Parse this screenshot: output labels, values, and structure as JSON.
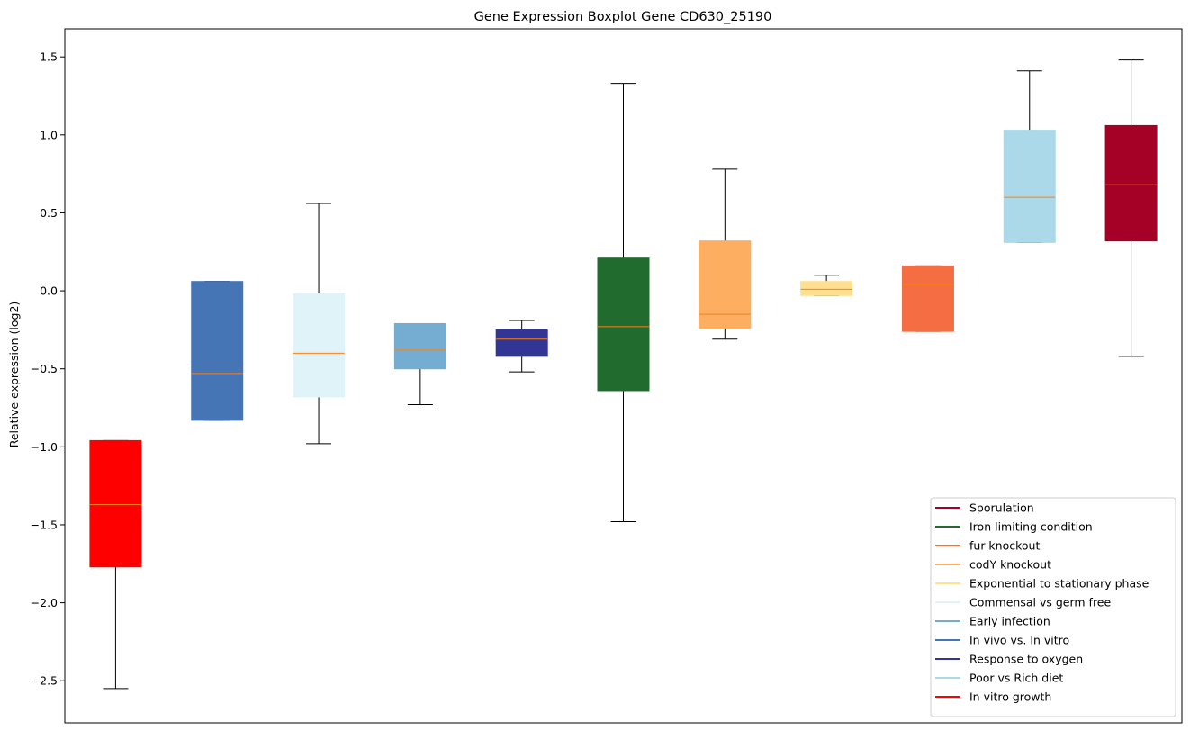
{
  "chart_data": {
    "type": "boxplot",
    "title": "Gene Expression Boxplot Gene CD630_25190",
    "xlabel": "",
    "ylabel": "Relative expression (log2)",
    "ylim": [
      -2.77,
      1.68
    ],
    "yticks": [
      1.5,
      1.0,
      0.5,
      0.0,
      -0.5,
      -1.0,
      -1.5,
      -2.0,
      -2.5
    ],
    "ytick_labels": [
      "1.5",
      "1.0",
      "0.5",
      "0.0",
      "−0.5",
      "−1.0",
      "−1.5",
      "−2.0",
      "−2.5"
    ],
    "median_color": "#ff7f0e",
    "boxes": [
      {
        "name": "In vitro growth",
        "color": "#ff0000",
        "whislo": -2.55,
        "q1": -1.77,
        "med": -1.37,
        "q3": -0.96,
        "whishi": -0.96
      },
      {
        "name": "In vivo vs. In vitro",
        "color": "#4575b4",
        "whislo": -0.83,
        "q1": -0.83,
        "med": -0.53,
        "q3": 0.06,
        "whishi": 0.06
      },
      {
        "name": "Commensal vs germ free",
        "color": "#e0f3f8",
        "whislo": -0.98,
        "q1": -0.68,
        "med": -0.4,
        "q3": -0.02,
        "whishi": 0.56
      },
      {
        "name": "Early infection",
        "color": "#74add1",
        "whislo": -0.73,
        "q1": -0.5,
        "med": -0.38,
        "q3": -0.21,
        "whishi": -0.21
      },
      {
        "name": "Response to oxygen",
        "color": "#313695",
        "whislo": -0.52,
        "q1": -0.42,
        "med": -0.31,
        "q3": -0.25,
        "whishi": -0.19
      },
      {
        "name": "Iron limiting condition",
        "color": "#226b2e",
        "whislo": -1.48,
        "q1": -0.64,
        "med": -0.23,
        "q3": 0.21,
        "whishi": 1.33
      },
      {
        "name": "codY knockout",
        "color": "#fdae61",
        "whislo": -0.31,
        "q1": -0.24,
        "med": -0.15,
        "q3": 0.32,
        "whishi": 0.78
      },
      {
        "name": "Exponential to stationary phase",
        "color": "#fee090",
        "whislo": -0.03,
        "q1": -0.03,
        "med": 0.01,
        "q3": 0.06,
        "whishi": 0.1
      },
      {
        "name": "fur knockout",
        "color": "#f46d43",
        "whislo": -0.26,
        "q1": -0.26,
        "med": 0.04,
        "q3": 0.16,
        "whishi": 0.16
      },
      {
        "name": "Poor vs Rich diet",
        "color": "#abd9e9",
        "whislo": 0.31,
        "q1": 0.31,
        "med": 0.6,
        "q3": 1.03,
        "whishi": 1.41
      },
      {
        "name": "Sporulation",
        "color": "#a50026",
        "whislo": -0.42,
        "q1": 0.32,
        "med": 0.68,
        "q3": 1.06,
        "whishi": 1.48
      }
    ],
    "legend": {
      "placement": "lower-right",
      "entries": [
        {
          "label": "Sporulation",
          "color": "#a50026"
        },
        {
          "label": "Iron limiting condition",
          "color": "#226b2e"
        },
        {
          "label": "fur knockout",
          "color": "#f46d43"
        },
        {
          "label": "codY knockout",
          "color": "#fdae61"
        },
        {
          "label": "Exponential to stationary phase",
          "color": "#fee090"
        },
        {
          "label": "Commensal vs germ free",
          "color": "#e0f3f8"
        },
        {
          "label": "Early infection",
          "color": "#74add1"
        },
        {
          "label": "In vivo vs. In vitro",
          "color": "#4575b4"
        },
        {
          "label": "Response to oxygen",
          "color": "#313695"
        },
        {
          "label": "Poor vs Rich diet",
          "color": "#abd9e9"
        },
        {
          "label": "In vitro growth",
          "color": "#ff0000"
        }
      ]
    },
    "grid": false
  }
}
